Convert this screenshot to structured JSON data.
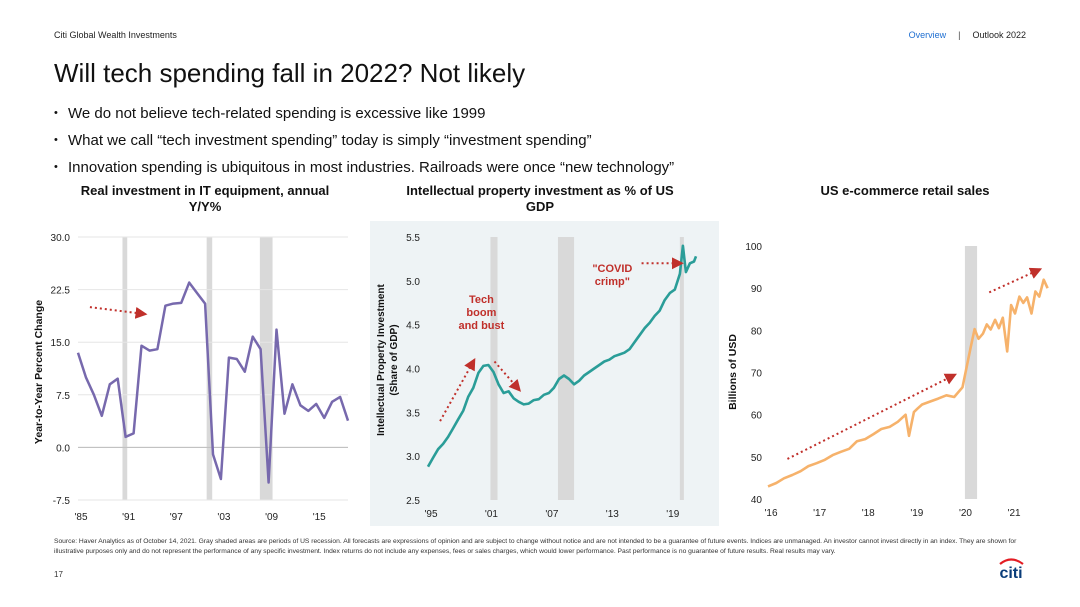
{
  "header": {
    "brand": "Citi Global Wealth Investments",
    "nav_link": "Overview",
    "nav_sep": "|",
    "nav_current": "Outlook 2022"
  },
  "title": "Will tech spending fall in 2022? Not likely",
  "bullets": [
    "We do not believe tech-related spending is excessive like 1999",
    "What we call “tech investment spending” today is simply “investment spending”",
    "Innovation spending is ubiquitous in most industries. Railroads were once “new technology”"
  ],
  "colors": {
    "chart1_line": "#7769ad",
    "chart2_line": "#2a9d98",
    "chart3_line": "#f6b26b",
    "recession": "#d9d9d9",
    "annotation": "#c0302b",
    "panel_bg": "#eef3f5",
    "brand_blue": "#1f6fd1",
    "logo_red": "#e31c23",
    "logo_blue": "#0a3d7a"
  },
  "footer": "Source: Haver Analytics as of October 14, 2021. Gray shaded areas are periods of US recession. All forecasts are expressions of opinion and are subject to change without notice and are not intended to be a guarantee of future events. Indices are unmanaged. An investor cannot invest directly in an index. They are shown for illustrative purposes only and do not represent the performance of any specific investment. Index returns do not include any expenses, fees or sales charges, which would lower performance. Past performance is no guarantee of future results. Real results may vary.",
  "page_number": "17",
  "logo": {
    "text": "citi",
    "icon": "citi-arc-logo"
  },
  "chart_data": [
    {
      "type": "line",
      "title": "Real investment in IT equipment, annual Y/Y%",
      "ylabel": "Year-to-Year Percent Change",
      "xlabel": "",
      "xlim": [
        1985,
        2019
      ],
      "ylim": [
        -7.5,
        30
      ],
      "yticks": [
        -7.5,
        0.0,
        7.5,
        15.0,
        22.5,
        30.0
      ],
      "ytick_labels": [
        "-7.5",
        "0.0",
        "7.5",
        "15.0",
        "22.5",
        "30.0"
      ],
      "xticks": [
        1985,
        1991,
        1997,
        2003,
        2009,
        2015
      ],
      "xtick_labels": [
        "'85",
        "'91",
        "'97",
        "'03",
        "'09",
        "'15"
      ],
      "grid": "horizontal",
      "recessions": [
        [
          1990.6,
          1991.2
        ],
        [
          2001.2,
          2001.9
        ],
        [
          2007.9,
          2009.5
        ]
      ],
      "series": [
        {
          "x": [
            1985,
            1986,
            1987,
            1988,
            1989,
            1990,
            1991,
            1992,
            1993,
            1994,
            1995,
            1996,
            1997,
            1998,
            1999,
            2000,
            2001,
            2002,
            2003,
            2004,
            2005,
            2006,
            2007,
            2008,
            2009,
            2010,
            2011,
            2012,
            2013,
            2014,
            2015,
            2016,
            2017,
            2018,
            2019
          ],
          "values": [
            13.5,
            10.0,
            7.5,
            4.5,
            9.0,
            9.8,
            1.5,
            2.0,
            14.5,
            13.8,
            14.0,
            20.2,
            20.5,
            20.6,
            23.5,
            22.0,
            20.5,
            -1.0,
            -4.5,
            12.8,
            12.6,
            10.8,
            15.8,
            14.0,
            -5.0,
            16.8,
            4.8,
            9.0,
            6.0,
            5.2,
            6.2,
            4.2,
            6.5,
            7.2,
            3.8
          ]
        }
      ],
      "annotations": [
        {
          "kind": "arrow",
          "from": [
            1986.5,
            20.0
          ],
          "to": [
            1993.5,
            19.0
          ]
        }
      ]
    },
    {
      "type": "line",
      "title": "Intellectual property investment as % of US GDP",
      "ylabel": "Intellectual Property Investment (Share of GDP)",
      "xlabel": "",
      "xlim": [
        1995,
        2022
      ],
      "ylim": [
        2.5,
        5.5
      ],
      "yticks": [
        2.5,
        3.0,
        3.5,
        4.0,
        4.5,
        5.0,
        5.5
      ],
      "ytick_labels": [
        "2.5",
        "3.0",
        "3.5",
        "4.0",
        "4.5",
        "5.0",
        "5.5"
      ],
      "xticks": [
        1995,
        2001,
        2007,
        2013,
        2019
      ],
      "xtick_labels": [
        "'95",
        "'01",
        "'07",
        "'13",
        "'19"
      ],
      "grid": "none",
      "recessions": [
        [
          2001.2,
          2001.9
        ],
        [
          2007.9,
          2009.5
        ],
        [
          2020.0,
          2020.4
        ]
      ],
      "series": [
        {
          "x": [
            1995,
            1995.5,
            1996,
            1996.5,
            1997,
            1997.5,
            1998,
            1998.5,
            1999,
            1999.5,
            2000,
            2000.5,
            2001,
            2001.5,
            2002,
            2002.5,
            2003,
            2003.5,
            2004,
            2004.5,
            2005,
            2005.5,
            2006,
            2006.5,
            2007,
            2007.5,
            2008,
            2008.5,
            2009,
            2009.5,
            2010,
            2010.5,
            2011,
            2011.5,
            2012,
            2012.5,
            2013,
            2013.5,
            2014,
            2014.5,
            2015,
            2015.5,
            2016,
            2016.5,
            2017,
            2017.5,
            2018,
            2018.5,
            2019,
            2019.5,
            2020,
            2020.3,
            2020.6,
            2021,
            2021.4,
            2021.6
          ],
          "values": [
            2.88,
            2.98,
            3.08,
            3.14,
            3.22,
            3.32,
            3.42,
            3.52,
            3.68,
            3.78,
            3.95,
            4.03,
            4.04,
            3.96,
            3.82,
            3.72,
            3.74,
            3.66,
            3.62,
            3.59,
            3.6,
            3.64,
            3.65,
            3.7,
            3.72,
            3.78,
            3.88,
            3.92,
            3.88,
            3.82,
            3.86,
            3.92,
            3.96,
            4.0,
            4.04,
            4.08,
            4.1,
            4.14,
            4.16,
            4.18,
            4.22,
            4.3,
            4.38,
            4.46,
            4.52,
            4.6,
            4.66,
            4.78,
            4.86,
            4.9,
            5.08,
            5.4,
            5.1,
            5.2,
            5.22,
            5.28
          ]
        }
      ],
      "annotations": [
        {
          "kind": "label",
          "text": "Tech boom and bust",
          "at": [
            2000.3,
            4.45
          ]
        },
        {
          "kind": "arrow",
          "from": [
            1996.2,
            3.4
          ],
          "to": [
            1999.6,
            4.1
          ]
        },
        {
          "kind": "arrow",
          "from": [
            2001.6,
            4.08
          ],
          "to": [
            2004.1,
            3.75
          ]
        },
        {
          "kind": "label",
          "text": "\"COVID crimp\"",
          "at": [
            2013.3,
            5.1
          ]
        },
        {
          "kind": "arrow",
          "from": [
            2016.2,
            5.2
          ],
          "to": [
            2020.2,
            5.2
          ]
        }
      ]
    },
    {
      "type": "line",
      "title": "US e-commerce retail sales",
      "ylabel": "Billions of USD",
      "xlabel": "",
      "xlim": [
        2016,
        2021.8
      ],
      "ylim": [
        40,
        100
      ],
      "yticks": [
        40,
        50,
        60,
        70,
        80,
        90,
        100
      ],
      "ytick_labels": [
        "40",
        "50",
        "60",
        "70",
        "80",
        "90",
        "100"
      ],
      "xticks": [
        2016,
        2017,
        2018,
        2019,
        2020,
        2021
      ],
      "xtick_labels": [
        "'16",
        "'17",
        "'18",
        "'19",
        "'20",
        "'21"
      ],
      "grid": "none",
      "recessions": [
        [
          2020.05,
          2020.3
        ]
      ],
      "series": [
        {
          "x": [
            2016.0,
            2016.17,
            2016.33,
            2016.5,
            2016.67,
            2016.83,
            2017.0,
            2017.17,
            2017.33,
            2017.5,
            2017.67,
            2017.83,
            2018.0,
            2018.17,
            2018.33,
            2018.5,
            2018.67,
            2018.83,
            2018.9,
            2019.0,
            2019.08,
            2019.17,
            2019.33,
            2019.5,
            2019.67,
            2019.83,
            2020.0,
            2020.17,
            2020.25,
            2020.33,
            2020.42,
            2020.5,
            2020.58,
            2020.67,
            2020.75,
            2020.83,
            2020.92,
            2021.0,
            2021.08,
            2021.17,
            2021.25,
            2021.33,
            2021.42,
            2021.5,
            2021.58,
            2021.67,
            2021.75
          ],
          "values": [
            43.0,
            43.8,
            44.9,
            45.7,
            46.6,
            47.8,
            48.5,
            49.3,
            50.4,
            51.2,
            51.9,
            53.7,
            54.2,
            55.4,
            56.6,
            57.1,
            58.3,
            60.0,
            55.0,
            60.6,
            61.5,
            62.4,
            63.1,
            63.8,
            64.6,
            64.2,
            66.5,
            76.0,
            80.3,
            78.0,
            79.2,
            81.4,
            80.2,
            82.5,
            80.5,
            83.0,
            75.0,
            86.0,
            84.0,
            88.0,
            86.5,
            87.8,
            84.0,
            89.2,
            88.0,
            92.0,
            90.0
          ]
        }
      ],
      "annotations": [
        {
          "kind": "arrow",
          "from": [
            2016.4,
            49.5
          ],
          "to": [
            2019.85,
            69.5
          ]
        },
        {
          "kind": "arrow",
          "from": [
            2020.55,
            89.0
          ],
          "to": [
            2021.6,
            94.5
          ]
        }
      ]
    }
  ]
}
